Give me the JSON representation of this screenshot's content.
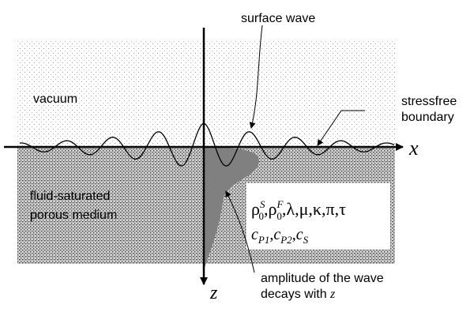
{
  "labels": {
    "surface_wave": "surface wave",
    "vacuum": "vacuum",
    "boundary": [
      "stressfree",
      "boundary"
    ],
    "medium": [
      "fluid-saturated",
      "porous medium"
    ],
    "amplitude": [
      "amplitude of the wave",
      "decays with"
    ],
    "amplitude_var": "z"
  },
  "axes": {
    "x": "x",
    "z": "z"
  },
  "parameters": {
    "separator": ",",
    "densities": [
      {
        "base": "ρ",
        "sub": "0",
        "sup": "S"
      },
      {
        "base": "ρ",
        "sub": "0",
        "sup": "F"
      }
    ],
    "constants": [
      "λ",
      "μ",
      "κ",
      "π",
      "τ"
    ],
    "velocities": [
      {
        "base": "c",
        "sub": "P1"
      },
      {
        "base": "c",
        "sub": "P2"
      },
      {
        "base": "c",
        "sub": "S"
      }
    ]
  }
}
